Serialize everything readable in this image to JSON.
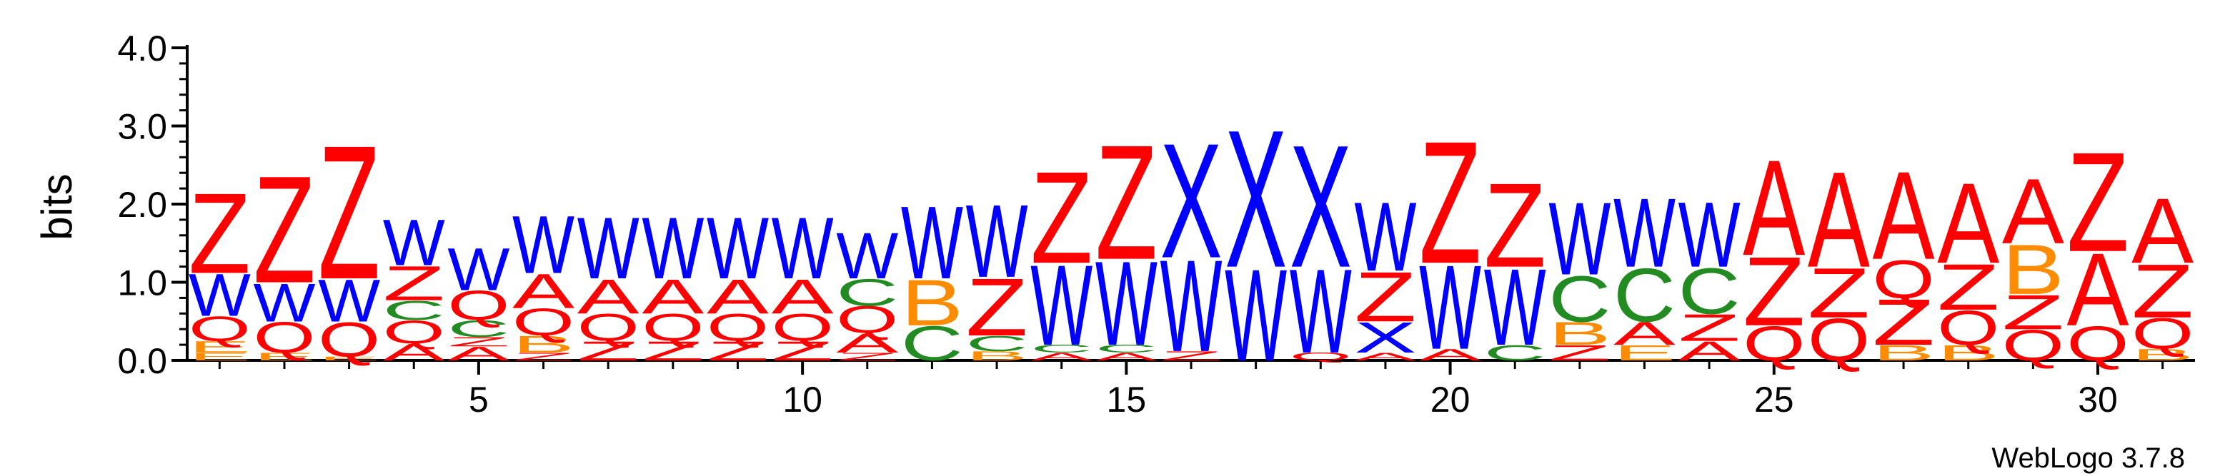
{
  "chart_data": {
    "type": "sequence-logo",
    "ylabel": "bits",
    "ylim": [
      0,
      4
    ],
    "yticks": [
      "0.0",
      "1.0",
      "2.0",
      "3.0",
      "4.0"
    ],
    "xticks": [
      5,
      10,
      15,
      20,
      25,
      30
    ],
    "credit": "WebLogo 3.7.8",
    "colors": {
      "Z": "#ff0000",
      "Q": "#ff0000",
      "A": "#ff0000",
      "W": "#0000ff",
      "X": "#0000ff",
      "C": "#228b22",
      "B": "#ff8c00",
      "E": "#ff8c00"
    },
    "positions": [
      {
        "pos": 1,
        "stack": [
          [
            "E",
            0.1
          ],
          [
            "E",
            0.15
          ],
          [
            "Q",
            0.32
          ],
          [
            "W",
            0.55
          ],
          [
            "Z",
            1.05
          ]
        ]
      },
      {
        "pos": 2,
        "stack": [
          [
            "E",
            0.1
          ],
          [
            "Q",
            0.4
          ],
          [
            "W",
            0.5
          ],
          [
            "Z",
            1.4
          ]
        ]
      },
      {
        "pos": 3,
        "stack": [
          [
            "E",
            0.05
          ],
          [
            "Q",
            0.45
          ],
          [
            "W",
            0.55
          ],
          [
            "Z",
            1.75
          ]
        ]
      },
      {
        "pos": 4,
        "stack": [
          [
            "A",
            0.22
          ],
          [
            "Q",
            0.3
          ],
          [
            "C",
            0.25
          ],
          [
            "Z",
            0.45
          ],
          [
            "W",
            0.6
          ]
        ]
      },
      {
        "pos": 5,
        "stack": [
          [
            "A",
            0.18
          ],
          [
            "Z",
            0.12
          ],
          [
            "C",
            0.22
          ],
          [
            "Q",
            0.38
          ],
          [
            "W",
            0.55
          ]
        ]
      },
      {
        "pos": 6,
        "stack": [
          [
            "Z",
            0.1
          ],
          [
            "B",
            0.22
          ],
          [
            "Q",
            0.35
          ],
          [
            "A",
            0.45
          ],
          [
            "W",
            0.75
          ]
        ]
      },
      {
        "pos": 7,
        "stack": [
          [
            "Z",
            0.25
          ],
          [
            "Q",
            0.35
          ],
          [
            "A",
            0.45
          ],
          [
            "W",
            0.8
          ]
        ]
      },
      {
        "pos": 8,
        "stack": [
          [
            "Z",
            0.25
          ],
          [
            "Q",
            0.35
          ],
          [
            "A",
            0.45
          ],
          [
            "W",
            0.8
          ]
        ]
      },
      {
        "pos": 9,
        "stack": [
          [
            "Z",
            0.25
          ],
          [
            "Q",
            0.35
          ],
          [
            "A",
            0.45
          ],
          [
            "W",
            0.8
          ]
        ]
      },
      {
        "pos": 10,
        "stack": [
          [
            "Z",
            0.25
          ],
          [
            "Q",
            0.35
          ],
          [
            "A",
            0.45
          ],
          [
            "W",
            0.8
          ]
        ]
      },
      {
        "pos": 11,
        "stack": [
          [
            "Z",
            0.1
          ],
          [
            "A",
            0.25
          ],
          [
            "Q",
            0.35
          ],
          [
            "C",
            0.35
          ],
          [
            "W",
            0.6
          ]
        ]
      },
      {
        "pos": 12,
        "stack": [
          [
            "C",
            0.45
          ],
          [
            "B",
            0.6
          ],
          [
            "W",
            0.95
          ]
        ]
      },
      {
        "pos": 13,
        "stack": [
          [
            "B",
            0.12
          ],
          [
            "C",
            0.2
          ],
          [
            "Z",
            0.75
          ],
          [
            "W",
            0.95
          ]
        ]
      },
      {
        "pos": 14,
        "stack": [
          [
            "A",
            0.1
          ],
          [
            "C",
            0.1
          ],
          [
            "W",
            1.05
          ],
          [
            "Z",
            1.2
          ]
        ]
      },
      {
        "pos": 15,
        "stack": [
          [
            "A",
            0.1
          ],
          [
            "C",
            0.1
          ],
          [
            "W",
            1.1
          ],
          [
            "Z",
            1.5
          ]
        ]
      },
      {
        "pos": 16,
        "stack": [
          [
            "Z",
            0.12
          ],
          [
            "W",
            1.2
          ],
          [
            "X",
            1.5
          ]
        ]
      },
      {
        "pos": 17,
        "stack": [
          [
            "W",
            1.2
          ],
          [
            "X",
            1.8
          ]
        ]
      },
      {
        "pos": 18,
        "stack": [
          [
            "Q",
            0.1
          ],
          [
            "W",
            1.1
          ],
          [
            "X",
            1.6
          ]
        ]
      },
      {
        "pos": 19,
        "stack": [
          [
            "A",
            0.1
          ],
          [
            "X",
            0.4
          ],
          [
            "Z",
            0.65
          ],
          [
            "W",
            0.9
          ]
        ]
      },
      {
        "pos": 20,
        "stack": [
          [
            "A",
            0.15
          ],
          [
            "W",
            1.1
          ],
          [
            "Z",
            1.6
          ]
        ]
      },
      {
        "pos": 21,
        "stack": [
          [
            "C",
            0.2
          ],
          [
            "W",
            1.0
          ],
          [
            "Z",
            1.1
          ]
        ]
      },
      {
        "pos": 22,
        "stack": [
          [
            "Z",
            0.2
          ],
          [
            "B",
            0.3
          ],
          [
            "C",
            0.6
          ],
          [
            "W",
            0.95
          ]
        ]
      },
      {
        "pos": 23,
        "stack": [
          [
            "E",
            0.2
          ],
          [
            "A",
            0.3
          ],
          [
            "C",
            0.7
          ],
          [
            "W",
            0.9
          ]
        ]
      },
      {
        "pos": 24,
        "stack": [
          [
            "A",
            0.25
          ],
          [
            "Z",
            0.35
          ],
          [
            "C",
            0.6
          ],
          [
            "W",
            0.85
          ]
        ]
      },
      {
        "pos": 25,
        "stack": [
          [
            "Q",
            0.45
          ],
          [
            "Z",
            0.9
          ],
          [
            "A",
            1.25
          ]
        ]
      },
      {
        "pos": 26,
        "stack": [
          [
            "Q",
            0.55
          ],
          [
            "Z",
            0.65
          ],
          [
            "A",
            1.25
          ]
        ]
      },
      {
        "pos": 27,
        "stack": [
          [
            "B",
            0.2
          ],
          [
            "Z",
            0.6
          ],
          [
            "Q",
            0.5
          ],
          [
            "A",
            1.15
          ]
        ]
      },
      {
        "pos": 28,
        "stack": [
          [
            "B",
            0.2
          ],
          [
            "Q",
            0.45
          ],
          [
            "Z",
            0.6
          ],
          [
            "A",
            1.05
          ]
        ]
      },
      {
        "pos": 29,
        "stack": [
          [
            "Q",
            0.4
          ],
          [
            "Z",
            0.45
          ],
          [
            "B",
            0.65
          ],
          [
            "A",
            0.85
          ]
        ]
      },
      {
        "pos": 30,
        "stack": [
          [
            "Q",
            0.45
          ],
          [
            "A",
            0.95
          ],
          [
            "Z",
            1.3
          ]
        ]
      },
      {
        "pos": 31,
        "stack": [
          [
            "B",
            0.15
          ],
          [
            "Q",
            0.4
          ],
          [
            "Z",
            0.7
          ],
          [
            "A",
            0.85
          ]
        ]
      }
    ]
  }
}
